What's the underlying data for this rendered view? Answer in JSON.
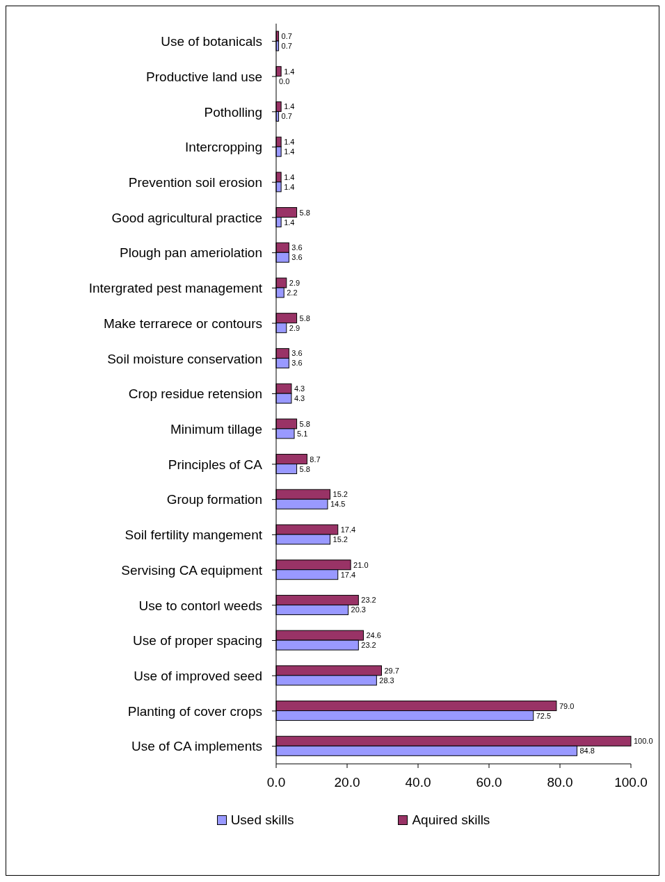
{
  "chart_data": {
    "type": "bar",
    "orientation": "horizontal",
    "categories": [
      "Use of botanicals",
      "Productive land use",
      "Potholling",
      "Intercropping",
      "Prevention soil erosion",
      "Good agricultural practice",
      "Plough pan ameriolation",
      "Intergrated pest management",
      "Make terrarece or contours",
      "Soil moisture conservation",
      "Crop residue retension",
      "Minimum tillage",
      "Principles of CA",
      "Group formation",
      "Soil fertility mangement",
      "Servising CA equipment",
      "Use to contorl weeds",
      "Use of proper spacing",
      "Use of improved seed",
      "Planting of cover crops",
      "Use of CA implements"
    ],
    "series": [
      {
        "name": "Used skills",
        "color": "#9999ff",
        "values": [
          0.7,
          0.0,
          0.7,
          1.4,
          1.4,
          1.4,
          3.6,
          2.2,
          2.9,
          3.6,
          4.3,
          5.1,
          5.8,
          14.5,
          15.2,
          17.4,
          20.3,
          23.2,
          28.3,
          72.5,
          84.8
        ],
        "value_labels": [
          "0.7",
          "0.0",
          "0.7",
          "1.4",
          "1.4",
          "1.4",
          "3.6",
          "2.2",
          "2.9",
          "3.6",
          "4.3",
          "5.1",
          "5.8",
          "14.5",
          "15.2",
          "17.4",
          "20.3",
          "23.2",
          "28.3",
          "72.5",
          "84.8"
        ]
      },
      {
        "name": "Aquired skills",
        "color": "#993366",
        "values": [
          0.7,
          1.4,
          1.4,
          1.4,
          1.4,
          5.8,
          3.6,
          2.9,
          5.8,
          3.6,
          4.3,
          5.8,
          8.7,
          15.2,
          17.4,
          21.0,
          23.2,
          24.6,
          29.7,
          79.0,
          100.0
        ],
        "value_labels": [
          "0.7",
          "1.4",
          "1.4",
          "1.4",
          "1.4",
          "5.8",
          "3.6",
          "2.9",
          "5.8",
          "3.6",
          "4.3",
          "5.8",
          "8.7",
          "15.2",
          "17.4",
          "21.0",
          "23.2",
          "24.6",
          "29.7",
          "79.0",
          "100.0"
        ]
      }
    ],
    "xlim": [
      0,
      100
    ],
    "xticks": [
      {
        "value": 0,
        "label": "0.0"
      },
      {
        "value": 20,
        "label": "20.0"
      },
      {
        "value": 40,
        "label": "40.0"
      },
      {
        "value": 60,
        "label": "60.0"
      },
      {
        "value": 80,
        "label": "80.0"
      },
      {
        "value": 100,
        "label": "100.0"
      }
    ],
    "legend": "bottom"
  }
}
